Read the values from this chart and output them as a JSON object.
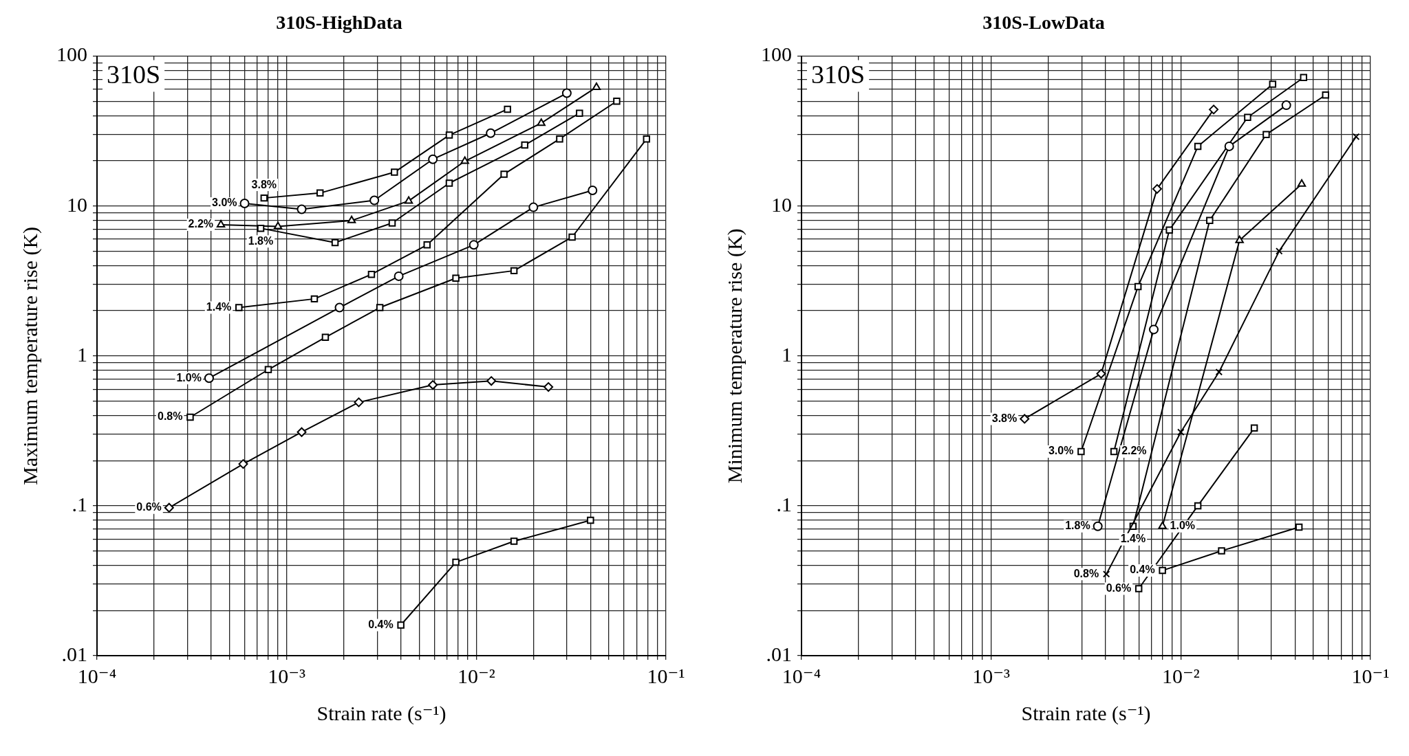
{
  "chart_data": [
    {
      "type": "line",
      "title": "310S-HighData",
      "xlabel": "Strain rate (s⁻¹)",
      "ylabel": "Maximum temperature rise (K)",
      "log": "xy",
      "grid": true,
      "annotations": [
        "310S"
      ],
      "xlim": [
        0.0001,
        0.1
      ],
      "ylim": [
        0.01,
        100
      ],
      "xticks": [
        {
          "value": 0.0001,
          "label": "10⁻⁴"
        },
        {
          "value": 0.0002,
          "label": null
        },
        {
          "value": 0.0003,
          "label": null
        },
        {
          "value": 0.0004,
          "label": null
        },
        {
          "value": 0.0005,
          "label": null
        },
        {
          "value": 0.0006,
          "label": null
        },
        {
          "value": 0.0007,
          "label": null
        },
        {
          "value": 0.0008,
          "label": null
        },
        {
          "value": 0.0009,
          "label": null
        },
        {
          "value": 0.001,
          "label": "10⁻³"
        },
        {
          "value": 0.002,
          "label": null
        },
        {
          "value": 0.003,
          "label": null
        },
        {
          "value": 0.004,
          "label": null
        },
        {
          "value": 0.005,
          "label": null
        },
        {
          "value": 0.006,
          "label": null
        },
        {
          "value": 0.007,
          "label": null
        },
        {
          "value": 0.008,
          "label": null
        },
        {
          "value": 0.009,
          "label": null
        },
        {
          "value": 0.01,
          "label": "10⁻²"
        },
        {
          "value": 0.02,
          "label": null
        },
        {
          "value": 0.03,
          "label": null
        },
        {
          "value": 0.04,
          "label": null
        },
        {
          "value": 0.05,
          "label": null
        },
        {
          "value": 0.06,
          "label": null
        },
        {
          "value": 0.07,
          "label": null
        },
        {
          "value": 0.08,
          "label": null
        },
        {
          "value": 0.09,
          "label": null
        },
        {
          "value": 0.1,
          "label": "10⁻¹"
        }
      ],
      "yticks": [
        {
          "value": 0.01,
          "label": ".01"
        },
        {
          "value": 0.02,
          "label": null
        },
        {
          "value": 0.03,
          "label": null
        },
        {
          "value": 0.04,
          "label": null
        },
        {
          "value": 0.05,
          "label": null
        },
        {
          "value": 0.06,
          "label": null
        },
        {
          "value": 0.07,
          "label": null
        },
        {
          "value": 0.08,
          "label": null
        },
        {
          "value": 0.09,
          "label": null
        },
        {
          "value": 0.1,
          "label": ".1"
        },
        {
          "value": 0.2,
          "label": null
        },
        {
          "value": 0.3,
          "label": null
        },
        {
          "value": 0.4,
          "label": null
        },
        {
          "value": 0.5,
          "label": null
        },
        {
          "value": 0.6,
          "label": null
        },
        {
          "value": 0.7,
          "label": null
        },
        {
          "value": 0.8,
          "label": null
        },
        {
          "value": 0.9,
          "label": null
        },
        1,
        {
          "value": 2,
          "label": null
        },
        {
          "value": 3,
          "label": null
        },
        {
          "value": 4,
          "label": null
        },
        {
          "value": 5,
          "label": null
        },
        {
          "value": 6,
          "label": null
        },
        {
          "value": 7,
          "label": null
        },
        {
          "value": 8,
          "label": null
        },
        {
          "value": 9,
          "label": null
        },
        10,
        {
          "value": 20,
          "label": null
        },
        {
          "value": 30,
          "label": null
        },
        {
          "value": 40,
          "label": null
        },
        {
          "value": 50,
          "label": null
        },
        {
          "value": 60,
          "label": null
        },
        {
          "value": 70,
          "label": null
        },
        {
          "value": 80,
          "label": null
        },
        {
          "value": 90,
          "label": null
        },
        100
      ],
      "series": [
        {
          "name": "0.4%",
          "color": "#000000",
          "marker": "square",
          "x": [
            0.004,
            0.0078,
            0.0158,
            0.04
          ],
          "values": [
            0.016,
            0.042,
            0.058,
            0.08
          ]
        },
        {
          "name": "0.6%",
          "color": "#000000",
          "marker": "diamond",
          "x": [
            0.00024,
            0.00059,
            0.0012,
            0.0024,
            0.0059,
            0.012,
            0.024
          ],
          "values": [
            0.097,
            0.19,
            0.31,
            0.49,
            0.64,
            0.68,
            0.62
          ]
        },
        {
          "name": "0.8%",
          "color": "#000000",
          "marker": "square",
          "x": [
            0.00031,
            0.0008,
            0.0016,
            0.0031,
            0.0078,
            0.0158,
            0.032,
            0.079
          ],
          "values": [
            0.39,
            0.81,
            1.33,
            2.1,
            3.3,
            3.7,
            6.2,
            28
          ]
        },
        {
          "name": "1.0%",
          "color": "#000000",
          "marker": "circle",
          "x": [
            0.00039,
            0.0019,
            0.0039,
            0.0097,
            0.02,
            0.041
          ],
          "values": [
            0.71,
            2.1,
            3.4,
            5.5,
            9.8,
            12.7
          ]
        },
        {
          "name": "1.4%",
          "color": "#000000",
          "marker": "square",
          "x": [
            0.00056,
            0.0014,
            0.0028,
            0.0055,
            0.014,
            0.0275,
            0.055
          ],
          "values": [
            2.1,
            2.4,
            3.5,
            5.5,
            16.3,
            28,
            50
          ]
        },
        {
          "name": "1.8%",
          "color": "#000000",
          "marker": "square",
          "x": [
            0.00073,
            0.0018,
            0.0036,
            0.0072,
            0.018,
            0.035
          ],
          "values": [
            7.1,
            5.7,
            7.7,
            14.2,
            25.5,
            41.6
          ]
        },
        {
          "name": "2.2%",
          "color": "#000000",
          "marker": "triangle",
          "x": [
            0.00045,
            0.0009,
            0.0022,
            0.0044,
            0.0087,
            0.022,
            0.043
          ],
          "values": [
            7.5,
            7.3,
            8,
            10.8,
            19.9,
            35.7,
            62
          ]
        },
        {
          "name": "3.0%",
          "color": "#000000",
          "marker": "circle",
          "x": [
            0.0006,
            0.0012,
            0.0029,
            0.0059,
            0.0119,
            0.03
          ],
          "values": [
            10.4,
            9.5,
            10.9,
            20.5,
            30.6,
            56.6
          ]
        },
        {
          "name": "3.8%",
          "color": "#000000",
          "marker": "square",
          "x": [
            0.00076,
            0.0015,
            0.0037,
            0.0072,
            0.0146
          ],
          "values": [
            11.3,
            12.2,
            16.8,
            29.7,
            44.2
          ]
        }
      ]
    },
    {
      "type": "line",
      "title": "310S-LowData",
      "xlabel": "Strain rate (s⁻¹)",
      "ylabel": "Minimum temperature rise (K)",
      "log": "xy",
      "grid": true,
      "annotations": [
        "310S"
      ],
      "xlim": [
        0.0001,
        0.1
      ],
      "ylim": [
        0.01,
        100
      ],
      "xticks": [
        {
          "value": 0.0001,
          "label": "10⁻⁴"
        },
        {
          "value": 0.0002,
          "label": null
        },
        {
          "value": 0.0003,
          "label": null
        },
        {
          "value": 0.0004,
          "label": null
        },
        {
          "value": 0.0005,
          "label": null
        },
        {
          "value": 0.0006,
          "label": null
        },
        {
          "value": 0.0007,
          "label": null
        },
        {
          "value": 0.0008,
          "label": null
        },
        {
          "value": 0.0009,
          "label": null
        },
        {
          "value": 0.001,
          "label": "10⁻³"
        },
        {
          "value": 0.002,
          "label": null
        },
        {
          "value": 0.003,
          "label": null
        },
        {
          "value": 0.004,
          "label": null
        },
        {
          "value": 0.005,
          "label": null
        },
        {
          "value": 0.006,
          "label": null
        },
        {
          "value": 0.007,
          "label": null
        },
        {
          "value": 0.008,
          "label": null
        },
        {
          "value": 0.009,
          "label": null
        },
        {
          "value": 0.01,
          "label": "10⁻²"
        },
        {
          "value": 0.02,
          "label": null
        },
        {
          "value": 0.03,
          "label": null
        },
        {
          "value": 0.04,
          "label": null
        },
        {
          "value": 0.05,
          "label": null
        },
        {
          "value": 0.06,
          "label": null
        },
        {
          "value": 0.07,
          "label": null
        },
        {
          "value": 0.08,
          "label": null
        },
        {
          "value": 0.09,
          "label": null
        },
        {
          "value": 0.1,
          "label": "10⁻¹"
        }
      ],
      "yticks": [
        {
          "value": 0.01,
          "label": ".01"
        },
        {
          "value": 0.02,
          "label": null
        },
        {
          "value": 0.03,
          "label": null
        },
        {
          "value": 0.04,
          "label": null
        },
        {
          "value": 0.05,
          "label": null
        },
        {
          "value": 0.06,
          "label": null
        },
        {
          "value": 0.07,
          "label": null
        },
        {
          "value": 0.08,
          "label": null
        },
        {
          "value": 0.09,
          "label": null
        },
        {
          "value": 0.1,
          "label": ".1"
        },
        {
          "value": 0.2,
          "label": null
        },
        {
          "value": 0.3,
          "label": null
        },
        {
          "value": 0.4,
          "label": null
        },
        {
          "value": 0.5,
          "label": null
        },
        {
          "value": 0.6,
          "label": null
        },
        {
          "value": 0.7,
          "label": null
        },
        {
          "value": 0.8,
          "label": null
        },
        {
          "value": 0.9,
          "label": null
        },
        1,
        {
          "value": 2,
          "label": null
        },
        {
          "value": 3,
          "label": null
        },
        {
          "value": 4,
          "label": null
        },
        {
          "value": 5,
          "label": null
        },
        {
          "value": 6,
          "label": null
        },
        {
          "value": 7,
          "label": null
        },
        {
          "value": 8,
          "label": null
        },
        {
          "value": 9,
          "label": null
        },
        10,
        {
          "value": 20,
          "label": null
        },
        {
          "value": 30,
          "label": null
        },
        {
          "value": 40,
          "label": null
        },
        {
          "value": 50,
          "label": null
        },
        {
          "value": 60,
          "label": null
        },
        {
          "value": 70,
          "label": null
        },
        {
          "value": 80,
          "label": null
        },
        {
          "value": 90,
          "label": null
        },
        100
      ],
      "series": [
        {
          "name": "0.4%",
          "color": "#000000",
          "marker": "square",
          "x": [
            0.008,
            0.0164,
            0.042
          ],
          "values": [
            0.037,
            0.05,
            0.072
          ]
        },
        {
          "name": "0.6%",
          "color": "#000000",
          "marker": "square",
          "x": [
            0.006,
            0.0123,
            0.0244
          ],
          "values": [
            0.028,
            0.1,
            0.33
          ]
        },
        {
          "name": "0.8%",
          "color": "#000000",
          "marker": "cross",
          "x": [
            0.00405,
            0.01,
            0.0159,
            0.033,
            0.084
          ],
          "values": [
            0.035,
            0.31,
            0.78,
            5,
            29
          ]
        },
        {
          "name": "1.0%",
          "color": "#000000",
          "marker": "triangle",
          "x": [
            0.008,
            0.0204,
            0.0434
          ],
          "values": [
            0.073,
            5.9,
            14
          ]
        },
        {
          "name": "1.4%",
          "color": "#000000",
          "marker": "square",
          "x": [
            0.0056,
            0.0142,
            0.0282,
            0.058
          ],
          "values": [
            0.073,
            8,
            30,
            55
          ]
        },
        {
          "name": "1.8%",
          "color": "#000000",
          "marker": "circle",
          "x": [
            0.00365,
            0.0072,
            0.018,
            0.036
          ],
          "values": [
            0.073,
            1.5,
            25,
            47
          ]
        },
        {
          "name": "2.2%",
          "color": "#000000",
          "marker": "square",
          "x": [
            0.00444,
            0.0087,
            0.0225,
            0.0444
          ],
          "values": [
            0.23,
            6.9,
            39,
            72
          ]
        },
        {
          "name": "3.0%",
          "color": "#000000",
          "marker": "square",
          "x": [
            0.00298,
            0.00595,
            0.0123,
            0.0305
          ],
          "values": [
            0.23,
            2.9,
            25,
            65
          ]
        },
        {
          "name": "3.8%",
          "color": "#000000",
          "marker": "diamond",
          "x": [
            0.0015,
            0.0038,
            0.0075,
            0.0149
          ],
          "values": [
            0.38,
            0.76,
            13,
            44
          ]
        }
      ]
    }
  ]
}
